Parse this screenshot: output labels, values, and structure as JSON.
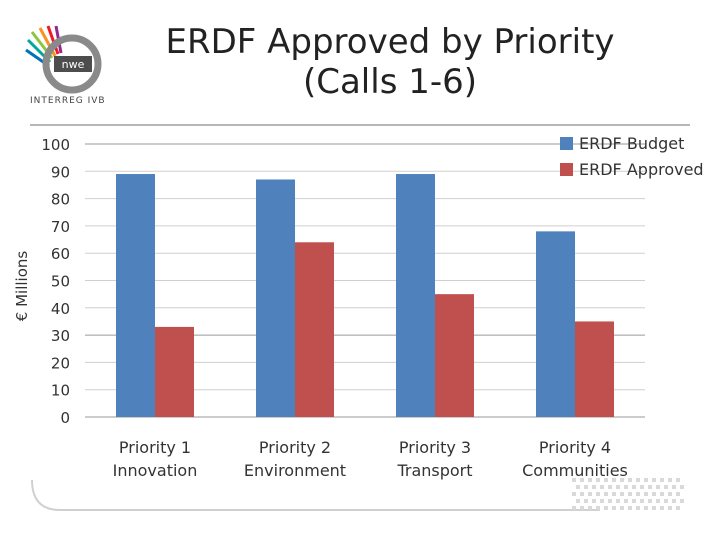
{
  "header": {
    "title_line1": "ERDF Approved by Priority",
    "title_line2": "(Calls 1-6)",
    "logo_text": "nwe",
    "logo_caption": "INTERREG IVB"
  },
  "colors": {
    "budget": "#4f81bd",
    "approved": "#c0504d"
  },
  "chart_data": {
    "type": "bar",
    "ylabel": "€ Millions",
    "ylim": [
      0,
      100
    ],
    "yticks": [
      0,
      10,
      20,
      30,
      40,
      50,
      60,
      70,
      80,
      90,
      100
    ],
    "grid": true,
    "legend_position": "top-right",
    "categories": [
      [
        "Priority 1",
        "Innovation"
      ],
      [
        "Priority 2",
        "Environment"
      ],
      [
        "Priority 3",
        "Transport"
      ],
      [
        "Priority 4",
        "Communities"
      ]
    ],
    "series": [
      {
        "name": "ERDF Budget",
        "values": [
          89,
          87,
          89,
          68
        ]
      },
      {
        "name": "ERDF Approved",
        "values": [
          33,
          64,
          45,
          35
        ]
      }
    ]
  }
}
